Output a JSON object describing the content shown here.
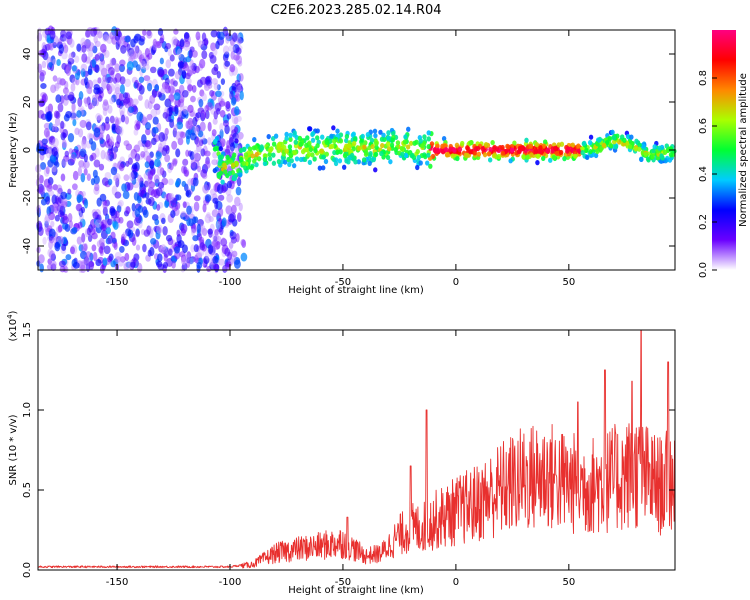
{
  "title": "C2E6.2023.285.02.14.R04",
  "chart_data": [
    {
      "type": "heatmap",
      "xlabel": "Height of straight line (km)",
      "ylabel": "Frequency (Hz)",
      "xlim": [
        -185,
        97
      ],
      "ylim": [
        -50,
        50
      ],
      "xticks": [
        -150,
        -100,
        -50,
        0,
        50
      ],
      "yticks": [
        -40,
        -20,
        0,
        20,
        40
      ],
      "ridge_points": [
        [
          -105,
          -8
        ],
        [
          -100,
          -7
        ],
        [
          -90,
          -3
        ],
        [
          -80,
          0
        ],
        [
          -70,
          1
        ],
        [
          -60,
          0
        ],
        [
          -50,
          1
        ],
        [
          -40,
          1
        ],
        [
          -30,
          1
        ],
        [
          -22,
          2
        ],
        [
          -15,
          0
        ],
        [
          0,
          0
        ],
        [
          20,
          0
        ],
        [
          40,
          0
        ],
        [
          55,
          0
        ],
        [
          62,
          1
        ],
        [
          70,
          4
        ],
        [
          78,
          2
        ],
        [
          85,
          -2
        ],
        [
          92,
          -1
        ],
        [
          97,
          -1
        ]
      ],
      "noise_region_x": [
        -185,
        -95
      ],
      "colorbar": {
        "label": "Normalized spectral amplitude",
        "range": [
          0,
          1
        ],
        "ticks": [
          "0.0",
          "0.2",
          "0.4",
          "0.6",
          "0.8"
        ],
        "colors": [
          "#ffffff",
          "#6a00ff",
          "#0000ff",
          "#00ccff",
          "#00ff33",
          "#aaff00",
          "#ff8800",
          "#ff0000",
          "#ff0080"
        ]
      }
    },
    {
      "type": "line",
      "xlabel": "Height of straight line (km)",
      "ylabel": "SNR (10 * v/v)",
      "y_exponent_label": "(x10",
      "y_exponent_power": "4",
      "y_exponent_close": ")",
      "xlim": [
        -185,
        97
      ],
      "ylim": [
        0,
        1.5
      ],
      "xticks": [
        -150,
        -100,
        -50,
        0,
        50
      ],
      "yticks": [
        "0.0",
        "0.5",
        "1.0",
        "1.5"
      ],
      "series_color": "#e8302e",
      "envelope": [
        {
          "x": -185,
          "y": 0.02
        },
        {
          "x": -100,
          "y": 0.02
        },
        {
          "x": -90,
          "y": 0.04
        },
        {
          "x": -80,
          "y": 0.12
        },
        {
          "x": -70,
          "y": 0.15
        },
        {
          "x": -60,
          "y": 0.17
        },
        {
          "x": -50,
          "y": 0.2
        },
        {
          "x": -40,
          "y": 0.1
        },
        {
          "x": -33,
          "y": 0.12
        },
        {
          "x": -25,
          "y": 0.25
        },
        {
          "x": -20,
          "y": 0.3
        },
        {
          "x": -15,
          "y": 0.3
        },
        {
          "x": -10,
          "y": 0.35
        },
        {
          "x": 0,
          "y": 0.42
        },
        {
          "x": 10,
          "y": 0.48
        },
        {
          "x": 20,
          "y": 0.58
        },
        {
          "x": 30,
          "y": 0.65
        },
        {
          "x": 40,
          "y": 0.68
        },
        {
          "x": 50,
          "y": 0.62
        },
        {
          "x": 60,
          "y": 0.6
        },
        {
          "x": 70,
          "y": 0.65
        },
        {
          "x": 80,
          "y": 0.7
        },
        {
          "x": 90,
          "y": 0.6
        },
        {
          "x": 97,
          "y": 0.65
        }
      ],
      "spikes": [
        {
          "x": -13,
          "y": 1.0
        },
        {
          "x": 54,
          "y": 1.05
        },
        {
          "x": 66,
          "y": 1.25
        },
        {
          "x": 78,
          "y": 1.18
        },
        {
          "x": 82,
          "y": 1.5
        },
        {
          "x": 94,
          "y": 1.3
        },
        {
          "x": -48,
          "y": 0.33
        },
        {
          "x": -20,
          "y": 0.65
        }
      ]
    }
  ]
}
